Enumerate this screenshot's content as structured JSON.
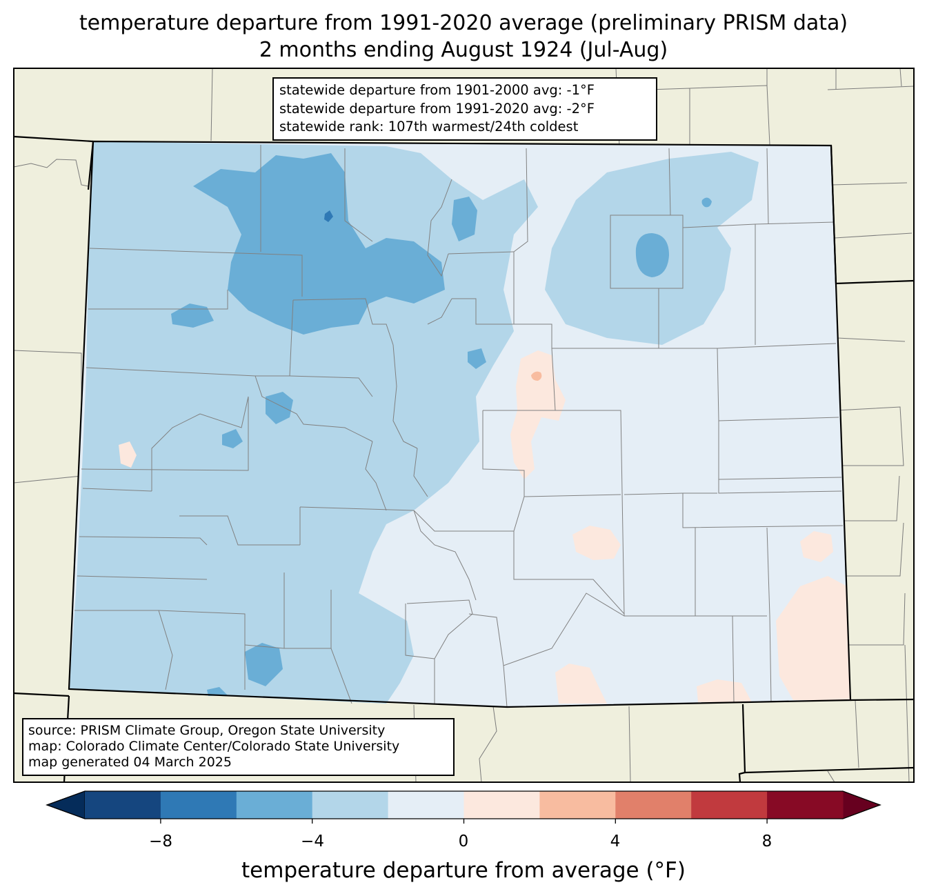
{
  "title": {
    "line1": "temperature departure from 1991-2020 average (preliminary PRISM data)",
    "line2": "2 months ending August 1924 (Jul-Aug)"
  },
  "stats": {
    "line1": "statewide departure from 1901-2000 avg: -1°F",
    "line2": "statewide departure from 1991-2020 avg: -2°F",
    "line3": "statewide rank: 107th warmest/24th coldest"
  },
  "credits": {
    "line1": "source: PRISM Climate Group, Oregon State University",
    "line2": "map: Colorado Climate Center/Colorado State University",
    "line3": "map generated 04 March 2025"
  },
  "colorbar": {
    "label": "temperature departure from average (°F)",
    "ticks": [
      "−8",
      "−4",
      "0",
      "4",
      "8"
    ],
    "bins": [
      -10,
      -8,
      -6,
      -4,
      -2,
      0,
      2,
      4,
      6,
      8,
      10
    ],
    "colors": [
      "#15467f",
      "#2f79b5",
      "#6aaed6",
      "#b3d6e9",
      "#e5eef6",
      "#fce8de",
      "#f8bca0",
      "#e1806a",
      "#c13a3e",
      "#870a25"
    ],
    "under_color": "#052c5a",
    "over_color": "#67001f"
  },
  "map_colors": {
    "land": "#efefdd",
    "state_fill": "#e5eef6",
    "cool_light": "#b3d6e9",
    "cool_mid": "#6aaed6",
    "cool_dark": "#2f79b5",
    "warm_light": "#fce8de",
    "warm_mid": "#f8bca0"
  }
}
